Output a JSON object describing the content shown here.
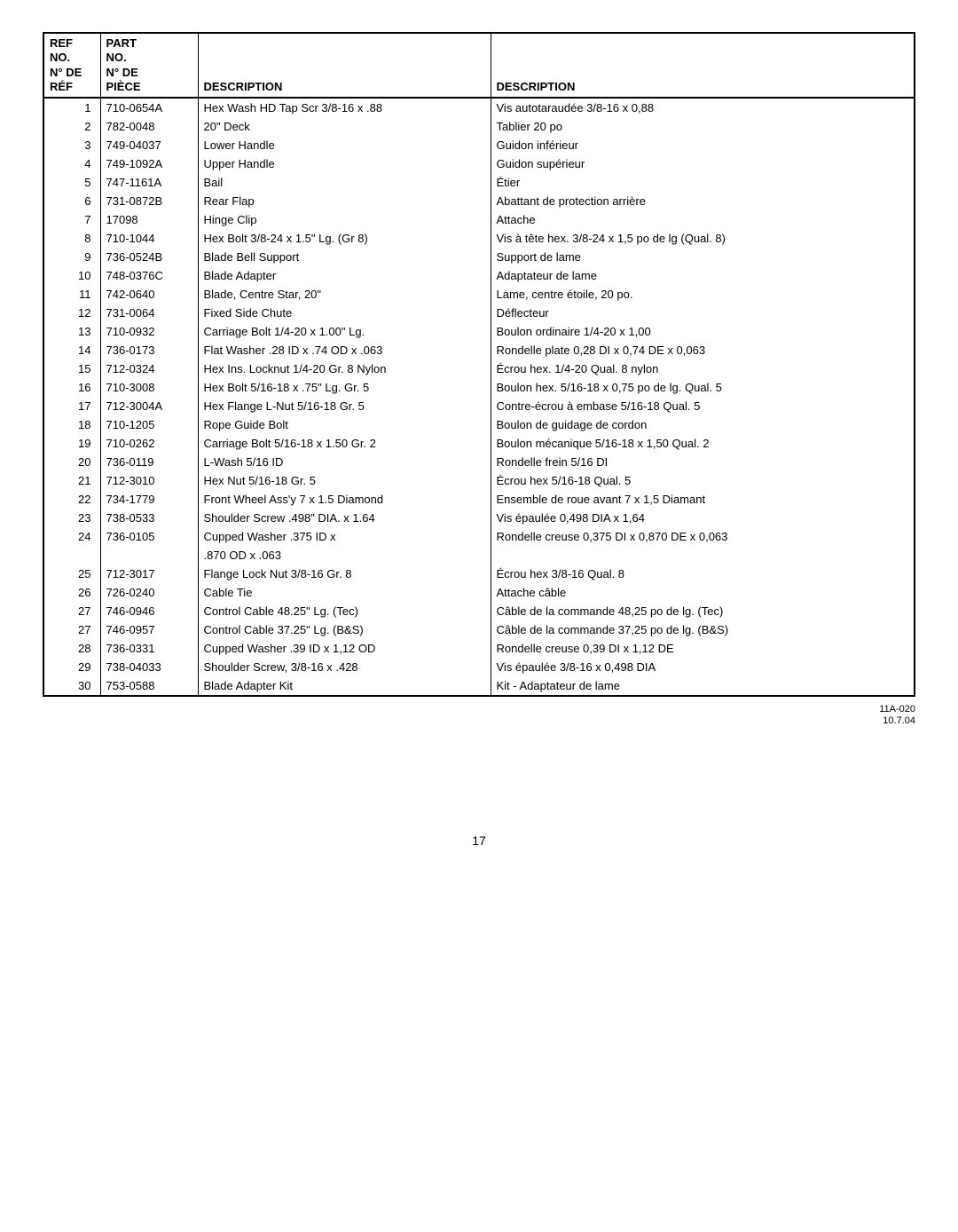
{
  "table": {
    "headers": {
      "ref": {
        "line1": "REF",
        "line2": "NO.",
        "line3": "N° DE",
        "line4": "RÉF"
      },
      "part": {
        "line1": "PART",
        "line2": "NO.",
        "line3": "N° DE",
        "line4": "PIÈCE"
      },
      "desc_en": "DESCRIPTION",
      "desc_fr": "DESCRIPTION"
    },
    "rows": [
      {
        "ref": "1",
        "part": "710-0654A",
        "en": "Hex Wash HD Tap Scr 3/8-16 x .88",
        "fr": "Vis autotaraudée 3/8-16 x 0,88"
      },
      {
        "ref": "2",
        "part": "782-0048",
        "en": "20\" Deck",
        "fr": "Tablier 20 po"
      },
      {
        "ref": "3",
        "part": "749-04037",
        "en": "Lower Handle",
        "fr": "Guidon inférieur"
      },
      {
        "ref": "4",
        "part": "749-1092A",
        "en": "Upper Handle",
        "fr": "Guidon supérieur"
      },
      {
        "ref": "5",
        "part": "747-1161A",
        "en": "Bail",
        "fr": "Étier"
      },
      {
        "ref": "6",
        "part": "731-0872B",
        "en": "Rear Flap",
        "fr": "Abattant de protection arrière"
      },
      {
        "ref": "7",
        "part": "17098",
        "en": "Hinge Clip",
        "fr": "Attache"
      },
      {
        "ref": "8",
        "part": "710-1044",
        "en": "Hex Bolt 3/8-24 x 1.5\" Lg. (Gr 8)",
        "fr": "Vis à tête hex. 3/8-24 x 1,5 po de lg (Qual. 8)"
      },
      {
        "ref": "9",
        "part": "736-0524B",
        "en": "Blade Bell Support",
        "fr": "Support de lame"
      },
      {
        "ref": "10",
        "part": "748-0376C",
        "en": "Blade Adapter",
        "fr": "Adaptateur de lame"
      },
      {
        "ref": "11",
        "part": "742-0640",
        "en": "Blade, Centre Star, 20\"",
        "fr": "Lame, centre étoile, 20 po."
      },
      {
        "ref": "12",
        "part": "731-0064",
        "en": "Fixed Side Chute",
        "fr": "Déflecteur"
      },
      {
        "ref": "13",
        "part": "710-0932",
        "en": "Carriage Bolt 1/4-20 x 1.00\" Lg.",
        "fr": "Boulon ordinaire 1/4-20 x 1,00"
      },
      {
        "ref": "14",
        "part": "736-0173",
        "en": "Flat Washer .28 ID x .74 OD x .063",
        "fr": "Rondelle plate 0,28 DI x 0,74 DE x 0,063"
      },
      {
        "ref": "15",
        "part": "712-0324",
        "en": "Hex Ins. Locknut 1/4-20 Gr. 8 Nylon",
        "fr": "Écrou hex. 1/4-20 Qual. 8 nylon"
      },
      {
        "ref": "16",
        "part": "710-3008",
        "en": "Hex Bolt 5/16-18 x .75\" Lg. Gr. 5",
        "fr": "Boulon hex. 5/16-18 x 0,75 po de lg. Qual. 5"
      },
      {
        "ref": "17",
        "part": "712-3004A",
        "en": "Hex Flange L-Nut 5/16-18 Gr. 5",
        "fr": "Contre-écrou à embase 5/16-18 Qual. 5"
      },
      {
        "ref": "18",
        "part": "710-1205",
        "en": "Rope Guide Bolt",
        "fr": "Boulon de guidage de cordon"
      },
      {
        "ref": "19",
        "part": "710-0262",
        "en": "Carriage Bolt 5/16-18 x 1.50 Gr. 2",
        "fr": "Boulon mécanique 5/16-18 x 1,50 Qual. 2"
      },
      {
        "ref": "20",
        "part": "736-0119",
        "en": "L-Wash 5/16 ID",
        "fr": "Rondelle frein 5/16 DI"
      },
      {
        "ref": "21",
        "part": "712-3010",
        "en": "Hex Nut 5/16-18 Gr. 5",
        "fr": "Écrou hex 5/16-18 Qual. 5"
      },
      {
        "ref": "22",
        "part": "734-1779",
        "en": "Front Wheel Ass'y 7 x 1.5 Diamond",
        "fr": "Ensemble de roue avant 7 x 1,5 Diamant"
      },
      {
        "ref": "23",
        "part": "738-0533",
        "en": "Shoulder Screw .498\" DIA. x 1.64",
        "fr": "Vis épaulée 0,498 DIA x 1,64"
      },
      {
        "ref": "24",
        "part": "736-0105",
        "en": "Cupped  Washer .375 ID x",
        "fr": "Rondelle creuse 0,375 DI x 0,870 DE x 0,063"
      },
      {
        "ref": "",
        "part": "",
        "en": ".870 OD x .063",
        "fr": ""
      },
      {
        "ref": "25",
        "part": "712-3017",
        "en": "Flange Lock Nut 3/8-16 Gr. 8",
        "fr": "Écrou hex 3/8-16 Qual. 8"
      },
      {
        "ref": "26",
        "part": "726-0240",
        "en": "Cable Tie",
        "fr": "Attache câble"
      },
      {
        "ref": "27",
        "part": "746-0946",
        "en": "Control Cable 48.25\" Lg. (Tec)",
        "fr": "Câble de la commande 48,25 po de lg. (Tec)"
      },
      {
        "ref": "27",
        "part": "746-0957",
        "en": "Control Cable 37.25\" Lg. (B&S)",
        "fr": "Câble de la commande 37,25 po de lg. (B&S)"
      },
      {
        "ref": "28",
        "part": "736-0331",
        "en": "Cupped Washer .39 ID x 1,12 OD",
        "fr": "Rondelle creuse 0,39 DI x 1,12 DE"
      },
      {
        "ref": "29",
        "part": "738-04033",
        "en": "Shoulder Screw, 3/8-16 x .428",
        "fr": "Vis épaulée 3/8-16 x 0,498 DIA"
      },
      {
        "ref": "30",
        "part": "753-0588",
        "en": "Blade Adapter Kit",
        "fr": "Kit - Adaptateur de lame"
      }
    ]
  },
  "footer": {
    "page": "17",
    "code": "11A-020",
    "date": "10.7.04"
  }
}
